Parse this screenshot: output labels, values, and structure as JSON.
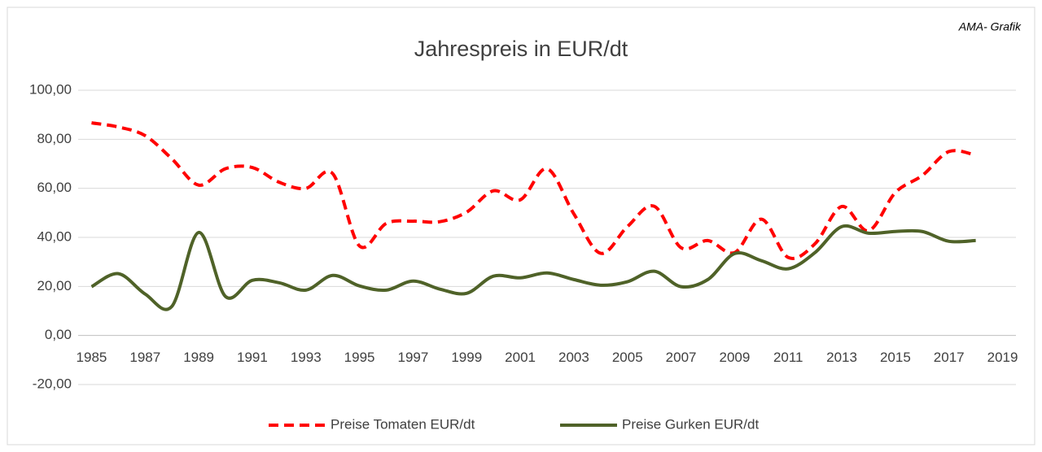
{
  "chart_data": {
    "type": "line",
    "title": "Jahrespreis in EUR/dt",
    "annotation": "AMA- Grafik",
    "categories": [
      "1985",
      null,
      "1987",
      null,
      "1989",
      null,
      "1991",
      null,
      "1993",
      null,
      "1995",
      null,
      "1997",
      null,
      "1999",
      null,
      "2001",
      null,
      "2003",
      null,
      "2005",
      null,
      "2007",
      null,
      "2009",
      null,
      "2011",
      null,
      "2013",
      null,
      "2015",
      null,
      "2017",
      null,
      "2019"
    ],
    "series": [
      {
        "name": "Preise Tomaten EUR/dt",
        "color": "#ff0000",
        "dash": "dashed",
        "values": [
          86.7,
          85,
          81.5,
          72,
          61.3,
          68,
          68.5,
          62.5,
          60,
          66,
          36.5,
          45.7,
          46.6,
          46.4,
          50.3,
          59,
          55.3,
          68,
          49.6,
          33.5,
          44.4,
          52.7,
          35.8,
          38.7,
          33.8,
          47.4,
          31.8,
          37.4,
          52.6,
          42.7,
          58.3,
          65.2,
          75,
          73.5,
          null
        ]
      },
      {
        "name": "Preise Gurken  EUR/dt",
        "color": "#4f6228",
        "dash": "solid",
        "values": [
          19.9,
          25.2,
          16.9,
          11.9,
          42,
          15.9,
          22.5,
          21.5,
          18.5,
          24.5,
          20.2,
          18.5,
          22.2,
          18.9,
          17.2,
          24.2,
          23.5,
          25.5,
          22.8,
          20.5,
          21.9,
          26.2,
          19.9,
          22.8,
          33.4,
          30.5,
          27.2,
          33.8,
          44.4,
          41.7,
          42.4,
          42.4,
          38.4,
          38.7,
          null
        ]
      }
    ],
    "ylim": [
      -20,
      100
    ],
    "yticks": [
      {
        "value": -20,
        "label": "-20,00"
      },
      {
        "value": 0,
        "label": "0,00"
      },
      {
        "value": 20,
        "label": "20,00"
      },
      {
        "value": 40,
        "label": "40,00"
      },
      {
        "value": 60,
        "label": "60,00"
      },
      {
        "value": 80,
        "label": "80,00"
      },
      {
        "value": 100,
        "label": "100,00"
      }
    ],
    "grid": true,
    "smooth": true,
    "legend": "bottom"
  }
}
